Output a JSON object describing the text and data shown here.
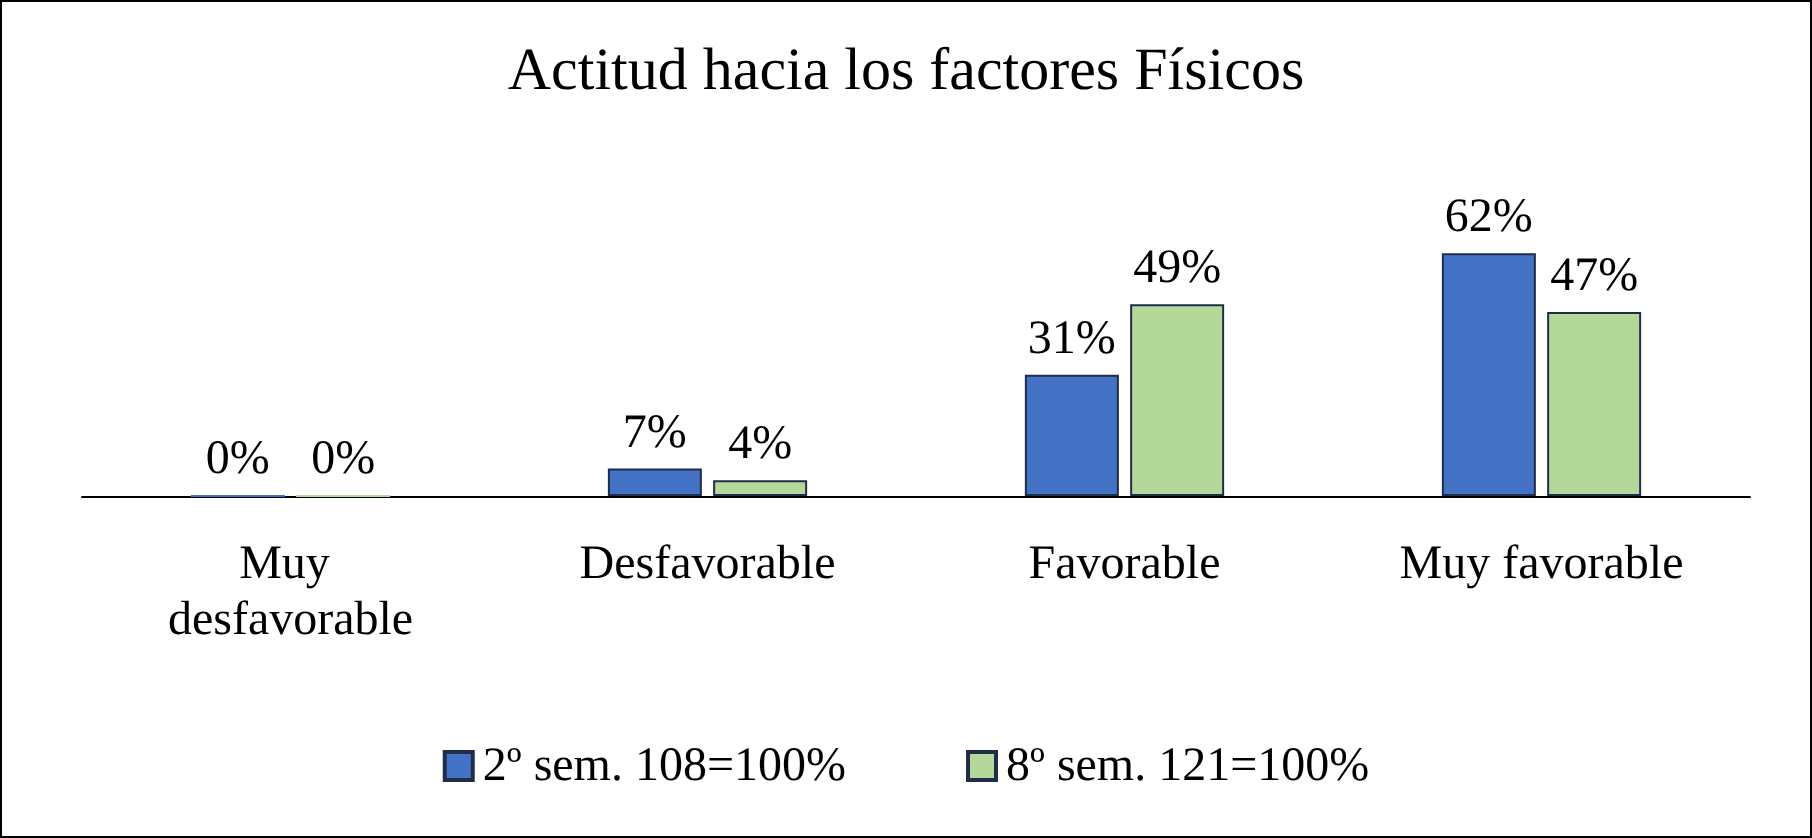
{
  "chart_data": {
    "type": "bar",
    "title": "Actitud hacia los factores Físicos",
    "categories": [
      "Muy desfavorable",
      "Desfavorable",
      "Favorable",
      "Muy favorable"
    ],
    "series": [
      {
        "name": "2º sem. 108=100%",
        "color": "#4472c4",
        "values": [
          0,
          7,
          31,
          62
        ],
        "value_labels": [
          "0%",
          "7%",
          "31%",
          "62%"
        ]
      },
      {
        "name": "8º sem. 121=100%",
        "color": "#b4d89a",
        "values": [
          0,
          4,
          49,
          47
        ],
        "value_labels": [
          "0%",
          "4%",
          "49%",
          "47%"
        ]
      }
    ],
    "legend": "bottom"
  }
}
